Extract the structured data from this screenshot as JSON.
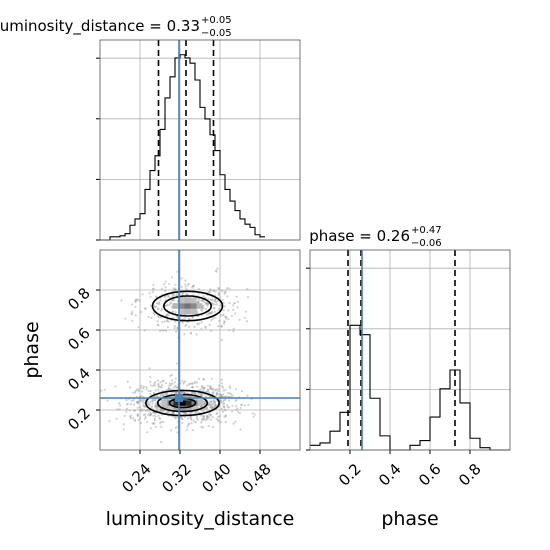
{
  "chart_data": {
    "type": "corner",
    "grid": true,
    "truth": {
      "luminosity_distance": 0.318,
      "phase": 0.26
    },
    "xlabels": {
      "luminosity_distance": "luminosity_distance",
      "phase": "phase"
    },
    "ylabel_phase": "phase",
    "ticks": {
      "luminosity_distance": [
        {
          "value": 0.24,
          "label": "0.24"
        },
        {
          "value": 0.32,
          "label": "0.32"
        },
        {
          "value": 0.4,
          "label": "0.40"
        },
        {
          "value": 0.48,
          "label": "0.48"
        }
      ],
      "phase": [
        {
          "value": 0.2,
          "label": "0.2"
        },
        {
          "value": 0.4,
          "label": "0.4"
        },
        {
          "value": 0.6,
          "label": "0.6"
        },
        {
          "value": 0.8,
          "label": "0.8"
        }
      ]
    },
    "ranges": {
      "luminosity_distance": [
        0.16,
        0.56
      ],
      "phase": [
        0.0,
        1.0
      ]
    },
    "hist_luminosity_distance": {
      "title_prefix": "luminosity_distance = 0.33",
      "title_sup": "+0.05",
      "title_sub": "−0.05",
      "quantiles": [
        0.277,
        0.332,
        0.387
      ],
      "bin_edges": [
        0.16,
        0.18,
        0.2,
        0.21,
        0.22,
        0.23,
        0.24,
        0.25,
        0.26,
        0.27,
        0.28,
        0.29,
        0.3,
        0.31,
        0.32,
        0.33,
        0.34,
        0.35,
        0.36,
        0.37,
        0.38,
        0.39,
        0.4,
        0.41,
        0.42,
        0.43,
        0.44,
        0.45,
        0.46,
        0.47,
        0.48,
        0.49
      ],
      "counts": [
        0,
        3,
        4,
        6,
        14,
        20,
        25,
        48,
        66,
        80,
        105,
        135,
        155,
        173,
        176,
        173,
        168,
        152,
        126,
        115,
        100,
        85,
        62,
        48,
        37,
        28,
        20,
        15,
        12,
        5,
        3
      ],
      "ymax": 190
    },
    "hist_phase": {
      "title_prefix": "phase = 0.26",
      "title_sup": "+0.47",
      "title_sub": "−0.06",
      "quantiles": [
        0.19,
        0.255,
        0.725
      ],
      "bin_edges": [
        0.0,
        0.05,
        0.1,
        0.15,
        0.2,
        0.25,
        0.3,
        0.35,
        0.4,
        0.45,
        0.5,
        0.55,
        0.6,
        0.65,
        0.7,
        0.75,
        0.8,
        0.85,
        0.9,
        0.95,
        1.0
      ],
      "counts": [
        2,
        3,
        8,
        16,
        53,
        49,
        22,
        6,
        0,
        0,
        2,
        4,
        14,
        26,
        34,
        20,
        5,
        1,
        0,
        0
      ],
      "ymax": 85
    },
    "joint": {
      "x_param": "luminosity_distance",
      "y_param": "phase",
      "modes": [
        {
          "x": 0.325,
          "y": 0.235,
          "sx": 0.045,
          "sy": 0.045,
          "weight": 0.7
        },
        {
          "x": 0.335,
          "y": 0.72,
          "sx": 0.043,
          "sy": 0.05,
          "weight": 0.3
        }
      ]
    }
  }
}
